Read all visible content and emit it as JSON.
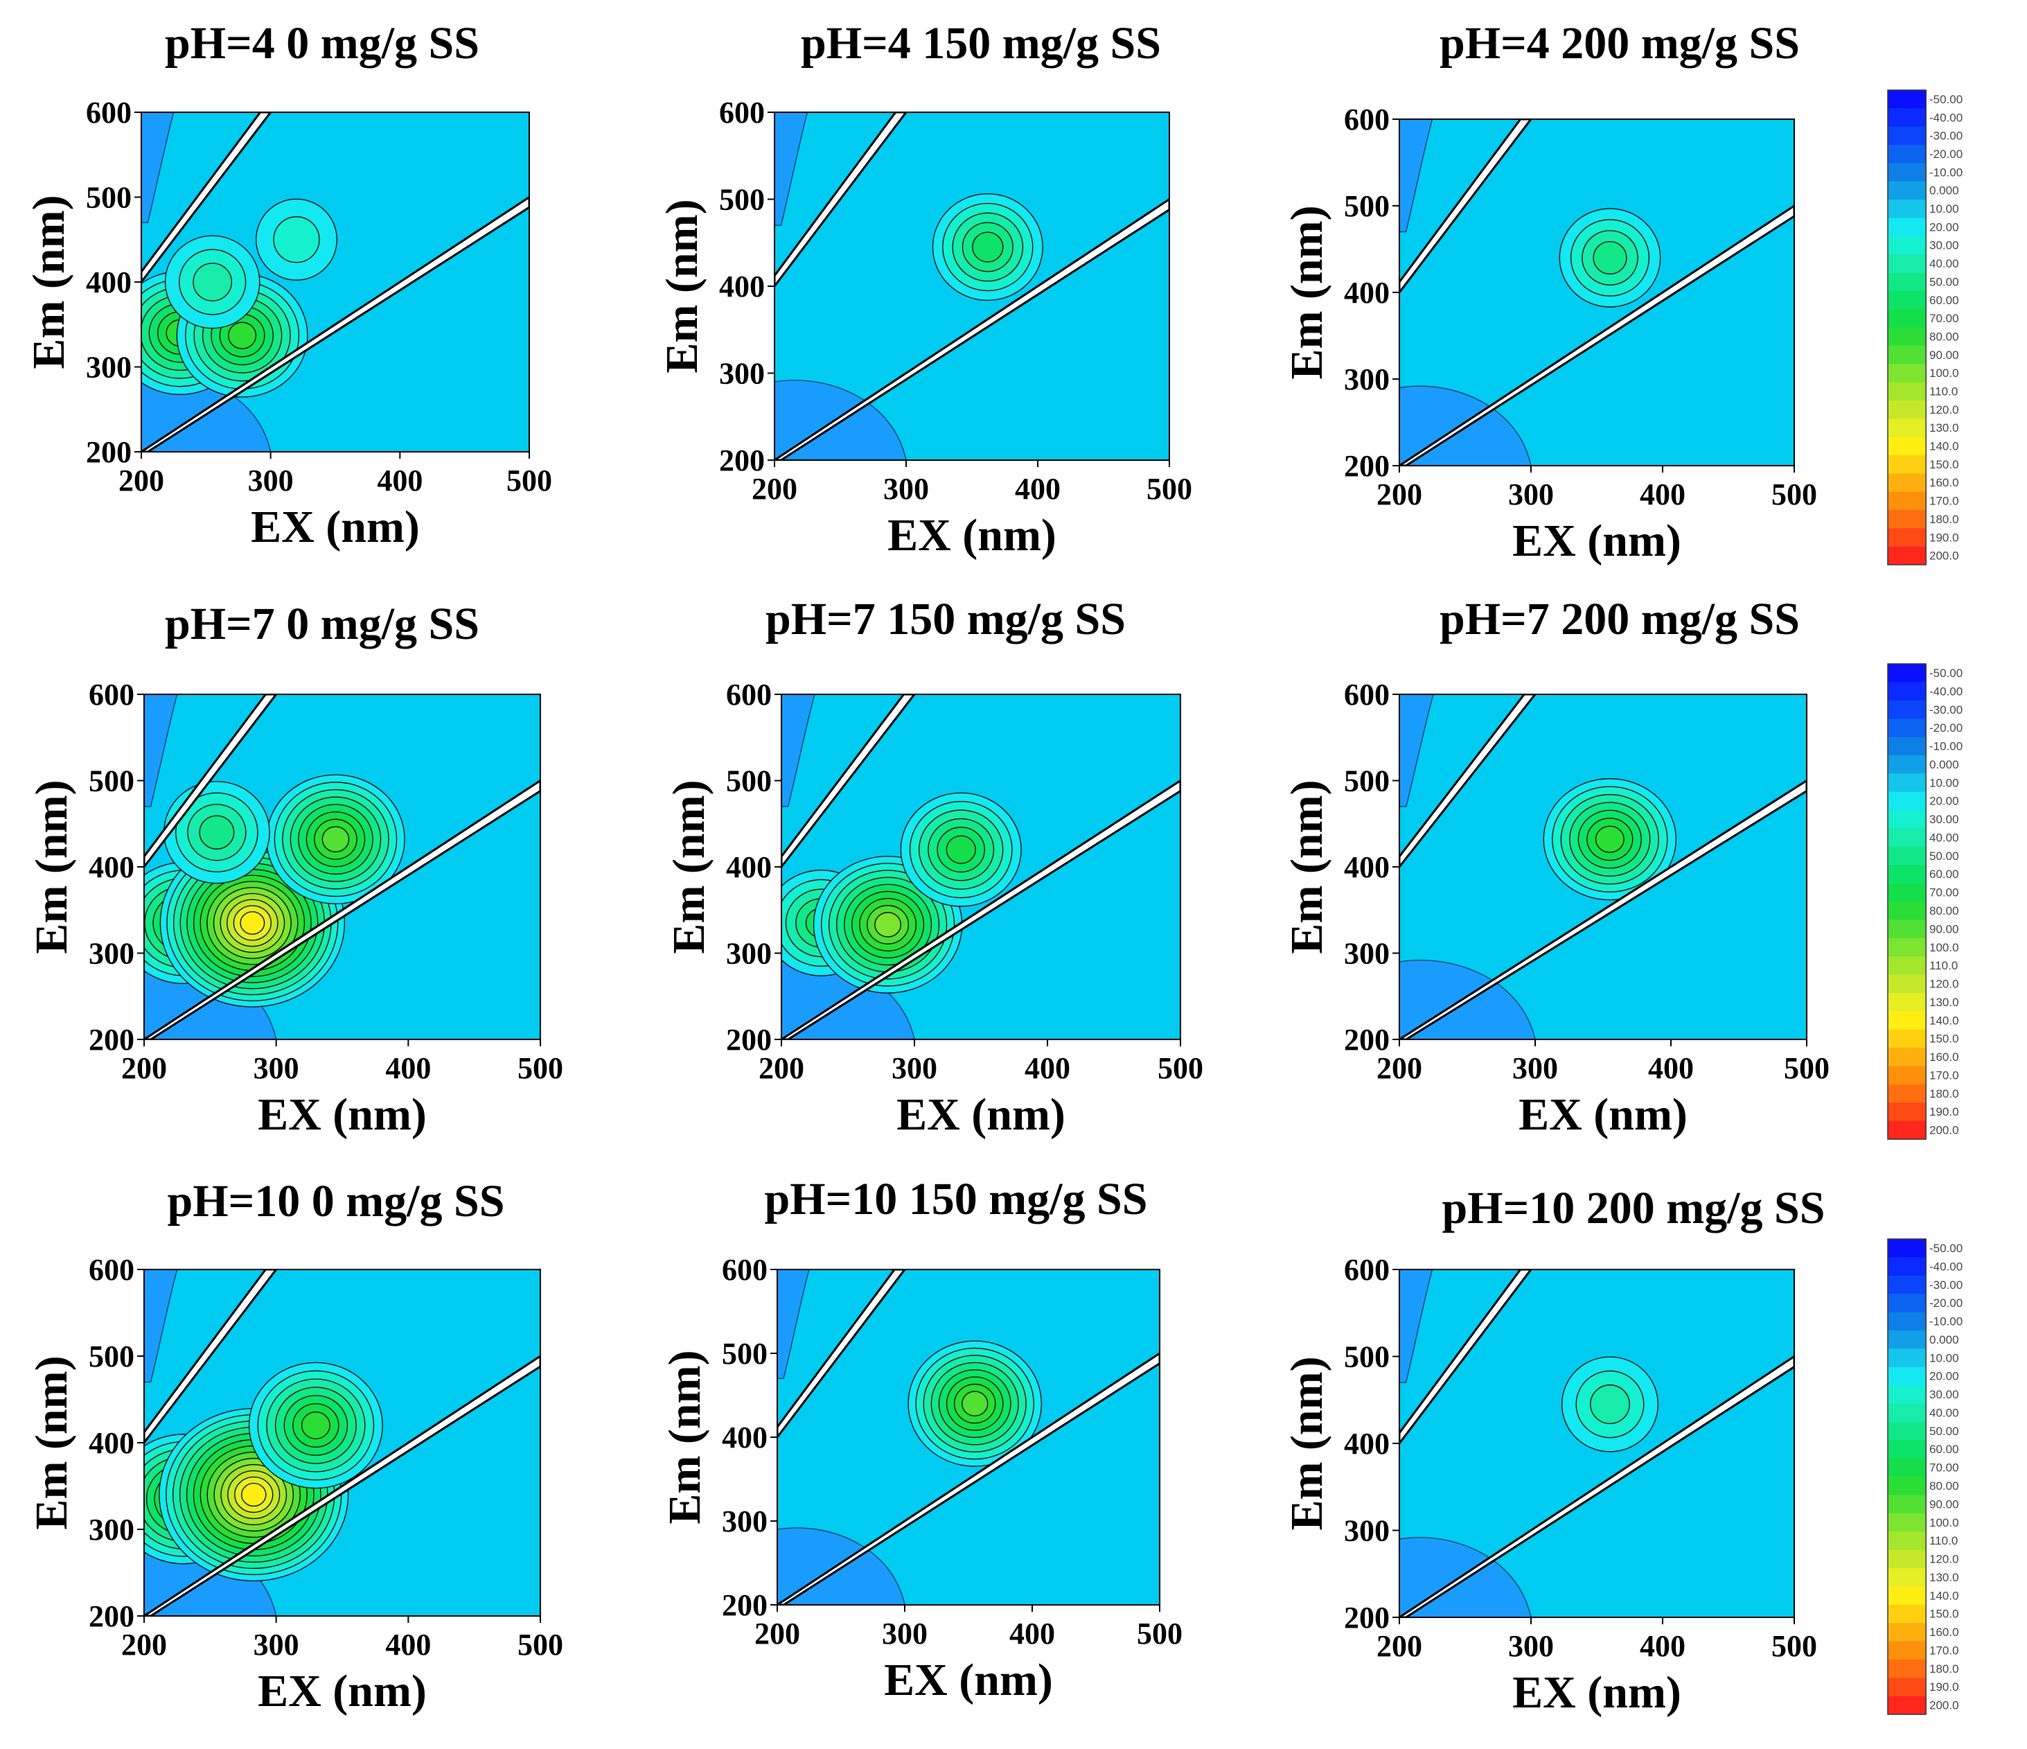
{
  "figure": {
    "panel_titles": [
      [
        "pH=4  0 mg/g SS",
        "pH=4 150 mg/g SS",
        "pH=4 200 mg/g SS"
      ],
      [
        "pH=7  0 mg/g SS",
        "pH=7 150 mg/g SS",
        "pH=7 200 mg/g SS"
      ],
      [
        "pH=10  0 mg/g SS",
        "pH=10 150 mg/g SS",
        "pH=10 200 mg/g SS"
      ]
    ]
  },
  "colors": {
    "background": "#00ccf2",
    "low": "#1a9cff",
    "scatter_band": "#ffffff",
    "contour_line": "#000000"
  },
  "chart_data": {
    "type": "heatmap",
    "subtype": "3D-EEM fluorescence contour",
    "xlabel": "EX (nm)",
    "ylabel": "Em (nm)",
    "xlim": [
      200,
      500
    ],
    "ylim": [
      200,
      600
    ],
    "x_ticks": [
      "200",
      "300",
      "400",
      "500"
    ],
    "y_ticks": [
      "200",
      "300",
      "400",
      "500",
      "600"
    ],
    "colorbar": {
      "labels": [
        "-50.00",
        "-40.00",
        "-30.00",
        "-20.00",
        "-10.00",
        "0.000",
        "10.00",
        "20.00",
        "30.00",
        "40.00",
        "50.00",
        "60.00",
        "70.00",
        "80.00",
        "90.00",
        "100.0",
        "110.0",
        "120.0",
        "130.0",
        "140.0",
        "150.0",
        "160.0",
        "170.0",
        "180.0",
        "190.0",
        "200.0"
      ],
      "colors": [
        "#0a10ff",
        "#0a2aff",
        "#0b45fb",
        "#0c63f2",
        "#0d7fe6",
        "#11a0e8",
        "#15c6ea",
        "#14e8f0",
        "#15f0cf",
        "#17ecaa",
        "#12e887",
        "#0ce368",
        "#14df4b",
        "#2ade35",
        "#52e034",
        "#7de42f",
        "#a3e62b",
        "#c6e829",
        "#e6ee25",
        "#ffee12",
        "#ffd010",
        "#ffb00e",
        "#ff900c",
        "#ff6e10",
        "#ff4a16",
        "#ff261c"
      ]
    },
    "panels": [
      {
        "title": "pH=4  0 mg/g SS",
        "peaks": [
          {
            "ex": 230,
            "em": 340,
            "value": 70
          },
          {
            "ex": 278,
            "em": 337,
            "value": 70
          },
          {
            "ex": 255,
            "em": 400,
            "value": 30
          },
          {
            "ex": 320,
            "em": 450,
            "value": 15
          }
        ]
      },
      {
        "title": "pH=4 150 mg/g SS",
        "peaks": [
          {
            "ex": 362,
            "em": 445,
            "value": 45
          }
        ]
      },
      {
        "title": "pH=4 200 mg/g SS",
        "peaks": [
          {
            "ex": 360,
            "em": 440,
            "value": 35
          }
        ]
      },
      {
        "title": "pH=7  0 mg/g SS",
        "peaks": [
          {
            "ex": 230,
            "em": 335,
            "value": 65
          },
          {
            "ex": 282,
            "em": 335,
            "value": 125
          },
          {
            "ex": 345,
            "em": 432,
            "value": 75
          },
          {
            "ex": 255,
            "em": 440,
            "value": 40
          }
        ]
      },
      {
        "title": "pH=7 150 mg/g SS",
        "peaks": [
          {
            "ex": 230,
            "em": 335,
            "value": 45
          },
          {
            "ex": 280,
            "em": 333,
            "value": 85
          },
          {
            "ex": 335,
            "em": 420,
            "value": 55
          }
        ]
      },
      {
        "title": "pH=7 200 mg/g SS",
        "peaks": [
          {
            "ex": 355,
            "em": 432,
            "value": 65
          }
        ]
      },
      {
        "title": "pH=10  0 mg/g SS",
        "peaks": [
          {
            "ex": 230,
            "em": 335,
            "value": 75
          },
          {
            "ex": 283,
            "em": 340,
            "value": 130
          },
          {
            "ex": 330,
            "em": 420,
            "value": 70
          }
        ]
      },
      {
        "title": "pH=10 150 mg/g SS",
        "peaks": [
          {
            "ex": 355,
            "em": 440,
            "value": 75
          }
        ]
      },
      {
        "title": "pH=10 200 mg/g SS",
        "peaks": [
          {
            "ex": 360,
            "em": 445,
            "value": 30
          }
        ]
      }
    ]
  }
}
